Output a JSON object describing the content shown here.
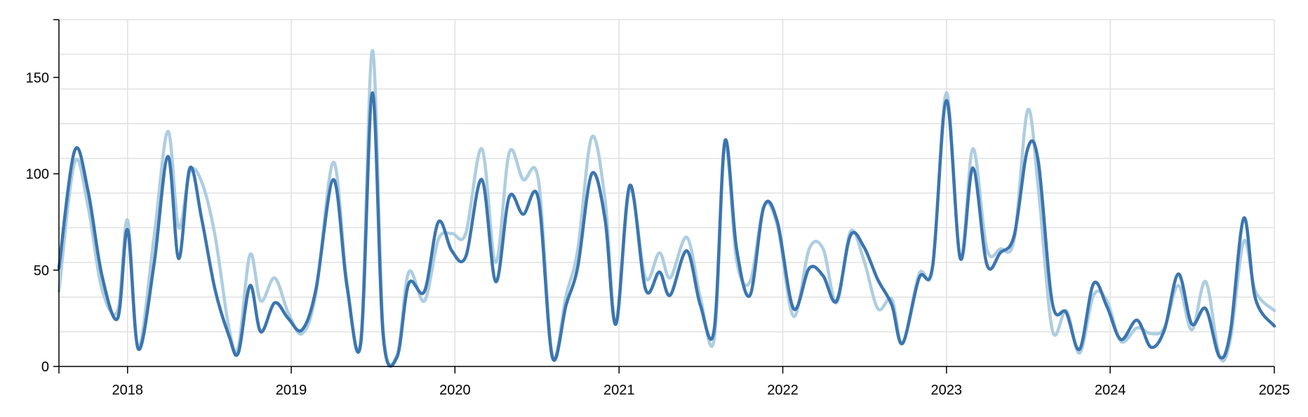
{
  "chart_data": {
    "type": "line",
    "title": "",
    "xlabel": "",
    "ylabel": "",
    "x_range": [
      "2017-08-01",
      "2025-01-01"
    ],
    "ylim": [
      0,
      180
    ],
    "x_ticks": [
      "2018",
      "2019",
      "2020",
      "2021",
      "2022",
      "2023",
      "2024",
      "2025"
    ],
    "y_ticks": [
      0,
      50,
      100,
      150
    ],
    "grid": true,
    "legend": "none",
    "colors": [
      "#aecde0",
      "#3b75af"
    ],
    "series": [
      {
        "points": [
          [
            "2017-08-01",
            39
          ],
          [
            "2017-09-05",
            106
          ],
          [
            "2017-10-05",
            83
          ],
          [
            "2017-11-05",
            40
          ],
          [
            "2017-12-10",
            29
          ],
          [
            "2018-01-01",
            76
          ],
          [
            "2018-01-25",
            10
          ],
          [
            "2018-03-01",
            67
          ],
          [
            "2018-04-01",
            122
          ],
          [
            "2018-04-25",
            72
          ],
          [
            "2018-05-20",
            101
          ],
          [
            "2018-06-15",
            96
          ],
          [
            "2018-07-15",
            68
          ],
          [
            "2018-08-15",
            20
          ],
          [
            "2018-09-05",
            10
          ],
          [
            "2018-10-01",
            58
          ],
          [
            "2018-10-25",
            34
          ],
          [
            "2018-11-25",
            46
          ],
          [
            "2018-12-25",
            28
          ],
          [
            "2019-01-25",
            17
          ],
          [
            "2019-02-25",
            38
          ],
          [
            "2019-04-05",
            106
          ],
          [
            "2019-05-05",
            44
          ],
          [
            "2019-06-05",
            14
          ],
          [
            "2019-07-01",
            164
          ],
          [
            "2019-07-25",
            19
          ],
          [
            "2019-08-25",
            6
          ],
          [
            "2019-09-20",
            49
          ],
          [
            "2019-10-25",
            34
          ],
          [
            "2019-11-25",
            66
          ],
          [
            "2019-12-25",
            69
          ],
          [
            "2020-01-25",
            69
          ],
          [
            "2020-03-01",
            113
          ],
          [
            "2020-04-01",
            54
          ],
          [
            "2020-05-01",
            111
          ],
          [
            "2020-06-01",
            97
          ],
          [
            "2020-07-05",
            97
          ],
          [
            "2020-08-05",
            6
          ],
          [
            "2020-09-05",
            37
          ],
          [
            "2020-10-01",
            61
          ],
          [
            "2020-11-01",
            119
          ],
          [
            "2020-12-01",
            86
          ],
          [
            "2020-12-25",
            22
          ],
          [
            "2021-01-25",
            92
          ],
          [
            "2021-03-01",
            46
          ],
          [
            "2021-04-01",
            59
          ],
          [
            "2021-04-25",
            46
          ],
          [
            "2021-06-01",
            67
          ],
          [
            "2021-07-01",
            36
          ],
          [
            "2021-08-01",
            14
          ],
          [
            "2021-08-25",
            115
          ],
          [
            "2021-09-20",
            55
          ],
          [
            "2021-10-20",
            44
          ],
          [
            "2021-11-20",
            83
          ],
          [
            "2021-12-20",
            73
          ],
          [
            "2022-01-25",
            26
          ],
          [
            "2022-03-01",
            61
          ],
          [
            "2022-04-01",
            61
          ],
          [
            "2022-05-01",
            33
          ],
          [
            "2022-06-01",
            70
          ],
          [
            "2022-07-01",
            55
          ],
          [
            "2022-08-01",
            30
          ],
          [
            "2022-09-01",
            35
          ],
          [
            "2022-09-25",
            12
          ],
          [
            "2022-11-01",
            48
          ],
          [
            "2022-12-01",
            51
          ],
          [
            "2023-01-01",
            142
          ],
          [
            "2023-02-01",
            56
          ],
          [
            "2023-03-01",
            113
          ],
          [
            "2023-04-01",
            61
          ],
          [
            "2023-05-01",
            61
          ],
          [
            "2023-06-01",
            66
          ],
          [
            "2023-07-01",
            133
          ],
          [
            "2023-07-25",
            92
          ],
          [
            "2023-08-25",
            19
          ],
          [
            "2023-09-25",
            29
          ],
          [
            "2023-10-25",
            7
          ],
          [
            "2023-11-25",
            37
          ],
          [
            "2023-12-25",
            34
          ],
          [
            "2024-01-25",
            13
          ],
          [
            "2024-03-01",
            20
          ],
          [
            "2024-04-01",
            17
          ],
          [
            "2024-05-01",
            20
          ],
          [
            "2024-06-01",
            42
          ],
          [
            "2024-07-01",
            19
          ],
          [
            "2024-08-01",
            44
          ],
          [
            "2024-09-01",
            5
          ],
          [
            "2024-09-25",
            14
          ],
          [
            "2024-10-25",
            65
          ],
          [
            "2024-11-20",
            39
          ],
          [
            "2025-01-01",
            29
          ]
        ]
      },
      {
        "points": [
          [
            "2017-08-01",
            51
          ],
          [
            "2017-09-05",
            112
          ],
          [
            "2017-10-05",
            91
          ],
          [
            "2017-11-05",
            47
          ],
          [
            "2017-12-10",
            25
          ],
          [
            "2018-01-01",
            71
          ],
          [
            "2018-01-25",
            9
          ],
          [
            "2018-03-01",
            53
          ],
          [
            "2018-04-01",
            109
          ],
          [
            "2018-04-25",
            56
          ],
          [
            "2018-05-20",
            103
          ],
          [
            "2018-06-15",
            77
          ],
          [
            "2018-07-15",
            40
          ],
          [
            "2018-08-15",
            16
          ],
          [
            "2018-09-05",
            7
          ],
          [
            "2018-10-01",
            42
          ],
          [
            "2018-10-25",
            18
          ],
          [
            "2018-11-25",
            33
          ],
          [
            "2018-12-25",
            25
          ],
          [
            "2019-01-25",
            19
          ],
          [
            "2019-02-25",
            40
          ],
          [
            "2019-04-05",
            97
          ],
          [
            "2019-05-05",
            42
          ],
          [
            "2019-06-05",
            12
          ],
          [
            "2019-07-01",
            142
          ],
          [
            "2019-07-25",
            16
          ],
          [
            "2019-08-25",
            5
          ],
          [
            "2019-09-20",
            43
          ],
          [
            "2019-10-25",
            39
          ],
          [
            "2019-11-25",
            75
          ],
          [
            "2019-12-25",
            60
          ],
          [
            "2020-01-25",
            57
          ],
          [
            "2020-03-01",
            97
          ],
          [
            "2020-04-01",
            44
          ],
          [
            "2020-05-01",
            88
          ],
          [
            "2020-06-01",
            79
          ],
          [
            "2020-07-05",
            87
          ],
          [
            "2020-08-05",
            5
          ],
          [
            "2020-09-05",
            32
          ],
          [
            "2020-10-01",
            52
          ],
          [
            "2020-11-01",
            100
          ],
          [
            "2020-12-01",
            76
          ],
          [
            "2020-12-25",
            22
          ],
          [
            "2021-01-25",
            94
          ],
          [
            "2021-03-01",
            40
          ],
          [
            "2021-04-01",
            49
          ],
          [
            "2021-04-25",
            37
          ],
          [
            "2021-06-01",
            60
          ],
          [
            "2021-07-01",
            32
          ],
          [
            "2021-08-01",
            19
          ],
          [
            "2021-08-25",
            117
          ],
          [
            "2021-09-20",
            61
          ],
          [
            "2021-10-20",
            37
          ],
          [
            "2021-11-20",
            83
          ],
          [
            "2021-12-20",
            75
          ],
          [
            "2022-01-25",
            30
          ],
          [
            "2022-03-01",
            51
          ],
          [
            "2022-04-01",
            47
          ],
          [
            "2022-05-01",
            34
          ],
          [
            "2022-06-01",
            68
          ],
          [
            "2022-07-01",
            62
          ],
          [
            "2022-08-01",
            45
          ],
          [
            "2022-09-01",
            32
          ],
          [
            "2022-09-25",
            12
          ],
          [
            "2022-11-01",
            46
          ],
          [
            "2022-12-01",
            52
          ],
          [
            "2023-01-01",
            138
          ],
          [
            "2023-02-01",
            56
          ],
          [
            "2023-03-01",
            103
          ],
          [
            "2023-04-01",
            53
          ],
          [
            "2023-05-01",
            59
          ],
          [
            "2023-06-01",
            68
          ],
          [
            "2023-07-01",
            113
          ],
          [
            "2023-07-25",
            106
          ],
          [
            "2023-08-25",
            33
          ],
          [
            "2023-09-25",
            28
          ],
          [
            "2023-10-25",
            9
          ],
          [
            "2023-11-25",
            43
          ],
          [
            "2023-12-25",
            31
          ],
          [
            "2024-01-25",
            14
          ],
          [
            "2024-03-01",
            24
          ],
          [
            "2024-04-01",
            10
          ],
          [
            "2024-05-01",
            19
          ],
          [
            "2024-06-01",
            48
          ],
          [
            "2024-07-01",
            22
          ],
          [
            "2024-08-01",
            30
          ],
          [
            "2024-09-01",
            5
          ],
          [
            "2024-09-25",
            18
          ],
          [
            "2024-10-25",
            77
          ],
          [
            "2024-11-20",
            35
          ],
          [
            "2025-01-01",
            21
          ]
        ]
      }
    ]
  }
}
